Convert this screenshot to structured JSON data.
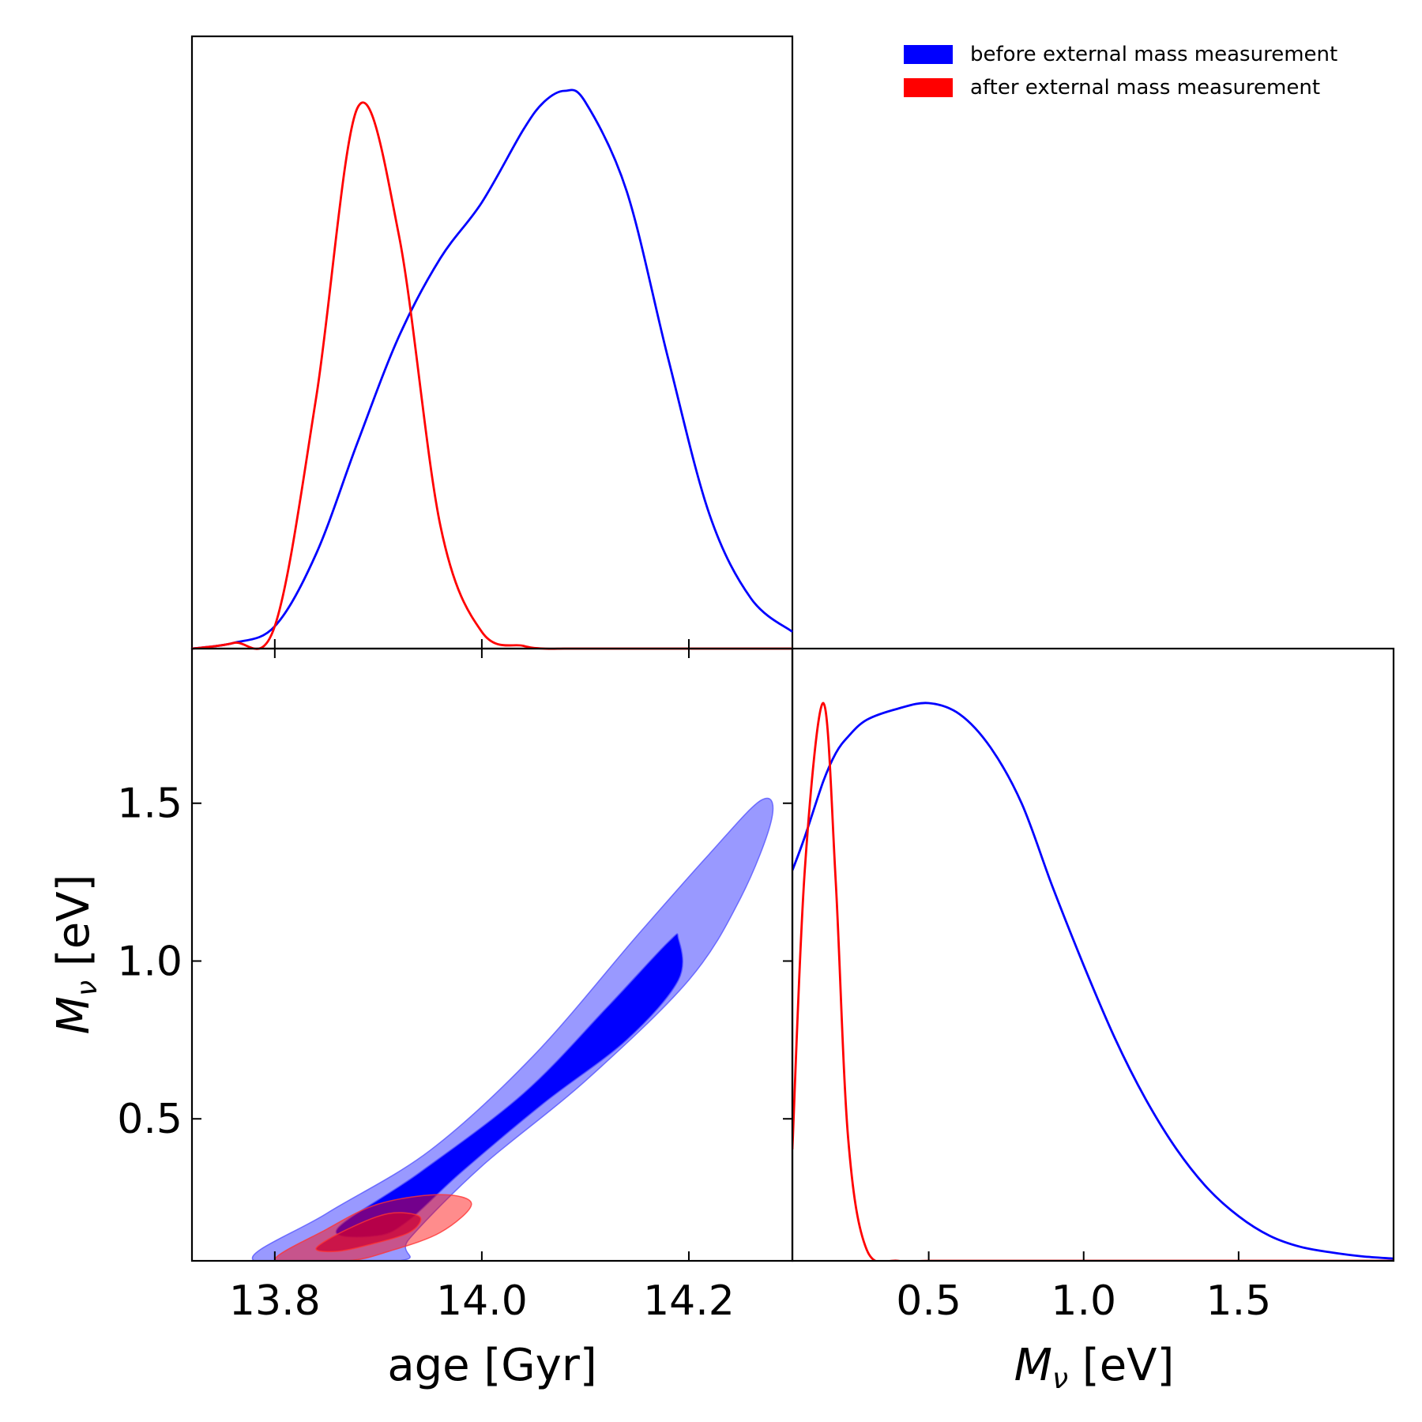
{
  "chart_data": [
    {
      "type": "line",
      "panel": "age marginal",
      "x": [
        13.72,
        13.76,
        13.8,
        13.84,
        13.88,
        13.92,
        13.96,
        14.0,
        14.04,
        14.06,
        14.08,
        14.1,
        14.14,
        14.18,
        14.22,
        14.26,
        14.3
      ],
      "series": [
        {
          "name": "before external mass measurement",
          "color": "#0000ff",
          "values": [
            0.0,
            0.01,
            0.04,
            0.17,
            0.37,
            0.56,
            0.7,
            0.8,
            0.93,
            0.98,
            1.0,
            0.98,
            0.82,
            0.52,
            0.24,
            0.09,
            0.03
          ]
        },
        {
          "name": "after external mass measurement",
          "color": "#ff0000",
          "values": [
            0.0,
            0.01,
            0.04,
            0.45,
            0.97,
            0.74,
            0.22,
            0.03,
            0.005,
            0.0,
            0.0,
            0.0,
            0.0,
            0.0,
            0.0,
            0.0,
            0.0
          ]
        }
      ],
      "xlim": [
        13.72,
        14.3
      ]
    },
    {
      "type": "area",
      "panel": "joint age vs M_nu",
      "xlabel": "age [Gyr]",
      "ylabel": "M_ν [eV]",
      "xticks": [
        "13.8",
        "14.0",
        "14.2"
      ],
      "yticks": [
        "0.5",
        "1.0",
        "1.5"
      ],
      "xlim": [
        13.72,
        14.3
      ],
      "ylim": [
        0.05,
        1.99
      ],
      "contours": [
        {
          "name": "before external mass measurement",
          "level": "outer",
          "color": "#9999ff",
          "points": [
            [
              13.78,
              0.05
            ],
            [
              13.85,
              0.2
            ],
            [
              13.95,
              0.4
            ],
            [
              14.05,
              0.7
            ],
            [
              14.15,
              1.08
            ],
            [
              14.22,
              1.34
            ],
            [
              14.27,
              1.51
            ],
            [
              14.28,
              1.45
            ],
            [
              14.25,
              1.2
            ],
            [
              14.2,
              0.94
            ],
            [
              14.1,
              0.62
            ],
            [
              14.0,
              0.35
            ],
            [
              13.93,
              0.12
            ],
            [
              13.92,
              0.05
            ]
          ]
        },
        {
          "name": "before external mass measurement",
          "level": "inner",
          "color": "#0000ff",
          "points": [
            [
              13.86,
              0.15
            ],
            [
              13.94,
              0.33
            ],
            [
              14.04,
              0.58
            ],
            [
              14.12,
              0.85
            ],
            [
              14.18,
              1.06
            ],
            [
              14.19,
              1.07
            ],
            [
              14.19,
              0.94
            ],
            [
              14.14,
              0.75
            ],
            [
              14.06,
              0.55
            ],
            [
              13.98,
              0.33
            ],
            [
              13.93,
              0.18
            ],
            [
              13.9,
              0.13
            ]
          ]
        },
        {
          "name": "after external mass measurement",
          "level": "outer",
          "color": "#ff0000",
          "points": [
            [
              13.8,
              0.05
            ],
            [
              13.85,
              0.15
            ],
            [
              13.9,
              0.23
            ],
            [
              13.96,
              0.26
            ],
            [
              13.99,
              0.23
            ],
            [
              13.96,
              0.14
            ],
            [
              13.91,
              0.08
            ],
            [
              13.87,
              0.05
            ]
          ]
        },
        {
          "name": "after external mass measurement",
          "level": "inner",
          "color": "#cc0033",
          "points": [
            [
              13.84,
              0.09
            ],
            [
              13.87,
              0.15
            ],
            [
              13.91,
              0.2
            ],
            [
              13.94,
              0.19
            ],
            [
              13.93,
              0.14
            ],
            [
              13.89,
              0.1
            ],
            [
              13.86,
              0.08
            ]
          ]
        }
      ]
    },
    {
      "type": "line",
      "panel": "M_nu marginal",
      "xlabel": "M_ν [eV]",
      "xticks": [
        "0.5",
        "1.0",
        "1.5"
      ],
      "xlim": [
        0.06,
        2.0
      ],
      "x": [
        0.06,
        0.1,
        0.16,
        0.2,
        0.24,
        0.3,
        0.4,
        0.5,
        0.6,
        0.7,
        0.8,
        0.9,
        1.0,
        1.1,
        1.2,
        1.3,
        1.4,
        1.5,
        1.6,
        1.7,
        1.8,
        1.9,
        2.0
      ],
      "series": [
        {
          "name": "before external mass measurement",
          "color": "#0000ff",
          "values": [
            0.7,
            0.76,
            0.86,
            0.91,
            0.94,
            0.97,
            0.99,
            1.0,
            0.98,
            0.92,
            0.82,
            0.67,
            0.53,
            0.4,
            0.29,
            0.2,
            0.13,
            0.08,
            0.045,
            0.025,
            0.015,
            0.008,
            0.004
          ]
        },
        {
          "name": "after external mass measurement",
          "color": "#ff0000",
          "values": [
            0.2,
            0.7,
            1.0,
            0.68,
            0.22,
            0.02,
            0.0,
            0.0,
            0.0,
            0.0,
            0.0,
            0.0,
            0.0,
            0.0,
            0.0,
            0.0,
            0.0,
            0.0,
            0.0,
            0.0,
            0.0,
            0.0,
            0.0
          ]
        }
      ]
    }
  ],
  "legend": [
    {
      "label": "before external mass measurement",
      "color": "#0000ff"
    },
    {
      "label": "after external mass measurement",
      "color": "#ff0000"
    }
  ]
}
